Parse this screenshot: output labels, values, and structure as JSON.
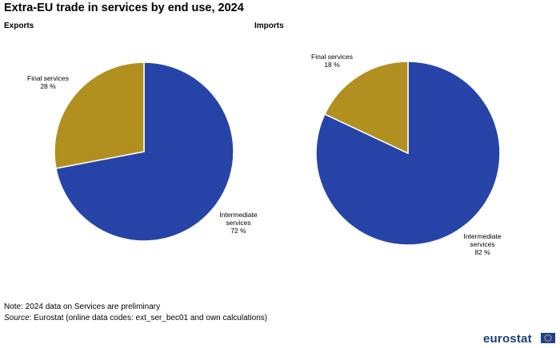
{
  "title": "Extra-EU trade in services by end use, 2024",
  "note_text": "Note: 2024 data on Services are preliminary",
  "source_label": "Source",
  "source_text": ": Eurostat (online data codes: ext_ser_bec01 and own calculations)",
  "logo_text": "eurostat",
  "colors": {
    "intermediate": "#2644a8",
    "final": "#b1901f"
  },
  "chart_data": [
    {
      "type": "pie",
      "title": "Exports",
      "slices": [
        {
          "label_lines": [
            "Intermediate",
            "services",
            "72 %"
          ],
          "value": 72,
          "color": "#2644a8"
        },
        {
          "label_lines": [
            "Final services",
            "28 %"
          ],
          "value": 28,
          "color": "#b1901f"
        }
      ]
    },
    {
      "type": "pie",
      "title": "Imports",
      "slices": [
        {
          "label_lines": [
            "Intermediate",
            "services",
            "82 %"
          ],
          "value": 82,
          "color": "#2644a8"
        },
        {
          "label_lines": [
            "Final services",
            "18 %"
          ],
          "value": 18,
          "color": "#b1901f"
        }
      ]
    }
  ]
}
